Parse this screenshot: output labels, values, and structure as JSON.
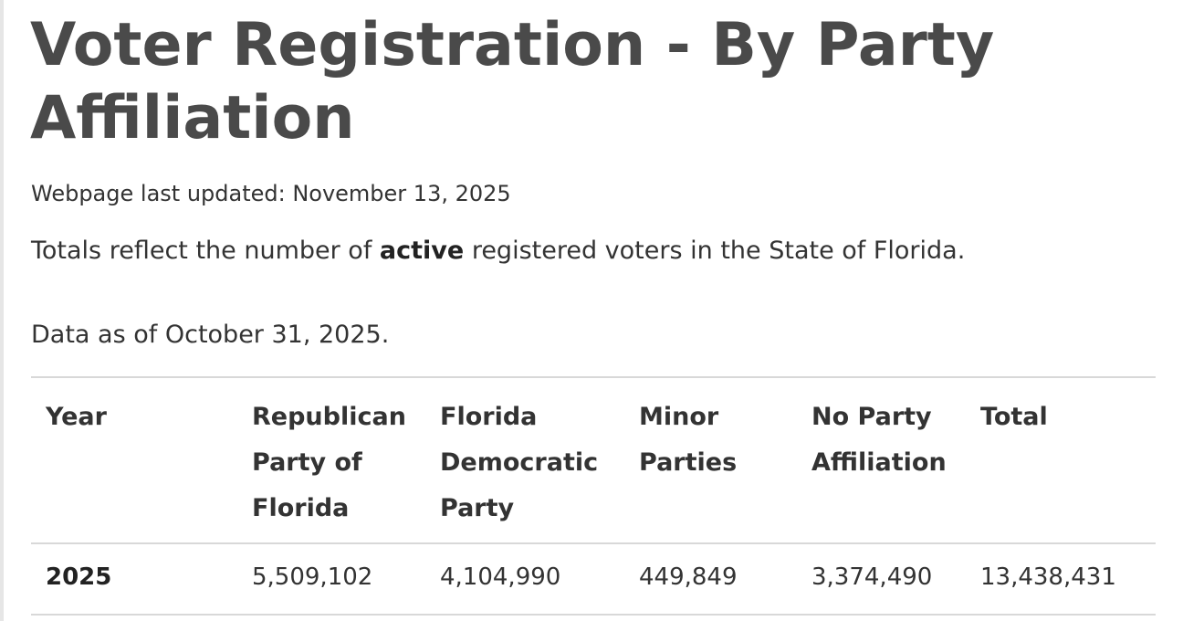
{
  "page": {
    "title": "Voter Registration - By Party Affiliation",
    "last_updated": "Webpage last updated: November 13, 2025",
    "totals_note": {
      "prefix": "Totals reflect the number of ",
      "emphasis": "active",
      "suffix": " registered voters in the State of Florida."
    },
    "data_as_of": "Data as of October 31, 2025."
  },
  "table": {
    "headers": [
      "Year",
      "Republican Party of Florida",
      "Florida Democratic Party",
      "Minor Parties",
      "No Party Affiliation",
      "Total"
    ],
    "rows": [
      [
        "2025",
        "5,509,102",
        "4,104,990",
        "449,849",
        "3,374,490",
        "13,438,431"
      ]
    ]
  }
}
